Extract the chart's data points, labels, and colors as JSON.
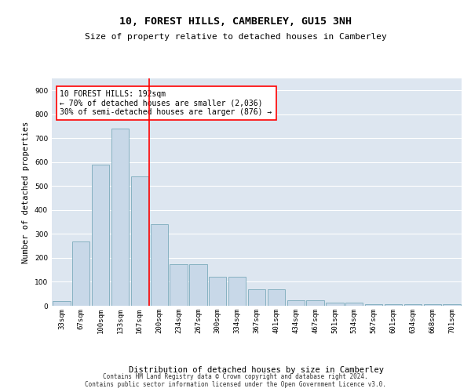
{
  "title_line1": "10, FOREST HILLS, CAMBERLEY, GU15 3NH",
  "title_line2": "Size of property relative to detached houses in Camberley",
  "xlabel": "Distribution of detached houses by size in Camberley",
  "ylabel": "Number of detached properties",
  "categories": [
    "33sqm",
    "67sqm",
    "100sqm",
    "133sqm",
    "167sqm",
    "200sqm",
    "234sqm",
    "267sqm",
    "300sqm",
    "334sqm",
    "367sqm",
    "401sqm",
    "434sqm",
    "467sqm",
    "501sqm",
    "534sqm",
    "567sqm",
    "601sqm",
    "634sqm",
    "668sqm",
    "701sqm"
  ],
  "values": [
    20,
    270,
    590,
    740,
    540,
    340,
    175,
    175,
    120,
    120,
    68,
    68,
    22,
    22,
    14,
    14,
    8,
    8,
    5,
    5,
    8
  ],
  "bar_color": "#c8d8e8",
  "bar_edge_color": "#7aaabb",
  "vline_color": "red",
  "annotation_text": "10 FOREST HILLS: 192sqm\n← 70% of detached houses are smaller (2,036)\n30% of semi-detached houses are larger (876) →",
  "annotation_box_color": "white",
  "annotation_box_edge": "red",
  "ylim": [
    0,
    950
  ],
  "yticks": [
    0,
    100,
    200,
    300,
    400,
    500,
    600,
    700,
    800,
    900
  ],
  "background_color": "#dde6f0",
  "footer_text": "Contains HM Land Registry data © Crown copyright and database right 2024.\nContains public sector information licensed under the Open Government Licence v3.0.",
  "title_fontsize": 9.5,
  "subtitle_fontsize": 8,
  "axis_label_fontsize": 7.5,
  "tick_fontsize": 6.5,
  "annotation_fontsize": 7,
  "footer_fontsize": 5.5
}
